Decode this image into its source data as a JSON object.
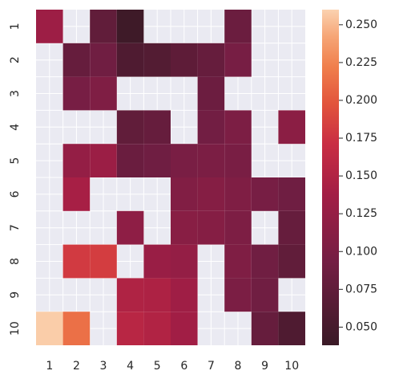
{
  "chart_data": {
    "type": "heatmap",
    "title": "",
    "xlabel": "",
    "ylabel": "",
    "x_categories": [
      "1",
      "2",
      "3",
      "4",
      "5",
      "6",
      "7",
      "8",
      "9",
      "10"
    ],
    "y_categories": [
      "1",
      "2",
      "3",
      "4",
      "5",
      "6",
      "7",
      "8",
      "9",
      "10"
    ],
    "missing_color": "#eaeaf2",
    "grid": true,
    "legend": "colorbar-right",
    "colormap": "rocket (reversed)",
    "vmin": 0.038,
    "vmax": 0.26,
    "colorbar_ticks": [
      "0.050",
      "0.075",
      "0.100",
      "0.125",
      "0.150",
      "0.175",
      "0.200",
      "0.225",
      "0.250"
    ],
    "values": [
      [
        0.132,
        null,
        0.075,
        0.042,
        null,
        null,
        null,
        0.085,
        null,
        null
      ],
      [
        null,
        0.08,
        0.09,
        0.058,
        0.062,
        0.072,
        0.08,
        0.096,
        null,
        null
      ],
      [
        null,
        0.096,
        0.104,
        null,
        null,
        null,
        0.086,
        null,
        null,
        null
      ],
      [
        null,
        null,
        null,
        0.075,
        0.08,
        null,
        0.092,
        0.101,
        null,
        0.115
      ],
      [
        null,
        0.124,
        0.13,
        0.084,
        0.089,
        0.098,
        0.1,
        0.098,
        null,
        null
      ],
      [
        null,
        0.141,
        null,
        null,
        null,
        0.106,
        0.11,
        0.104,
        0.096,
        0.089
      ],
      [
        null,
        null,
        null,
        0.118,
        null,
        0.112,
        0.11,
        0.102,
        null,
        0.08
      ],
      [
        null,
        0.18,
        0.182,
        null,
        0.128,
        0.124,
        null,
        0.104,
        0.09,
        0.075
      ],
      [
        null,
        null,
        null,
        0.148,
        0.147,
        0.134,
        null,
        0.1,
        0.09,
        null
      ],
      [
        0.258,
        0.214,
        null,
        0.156,
        0.15,
        0.136,
        null,
        null,
        0.08,
        0.058
      ]
    ]
  }
}
